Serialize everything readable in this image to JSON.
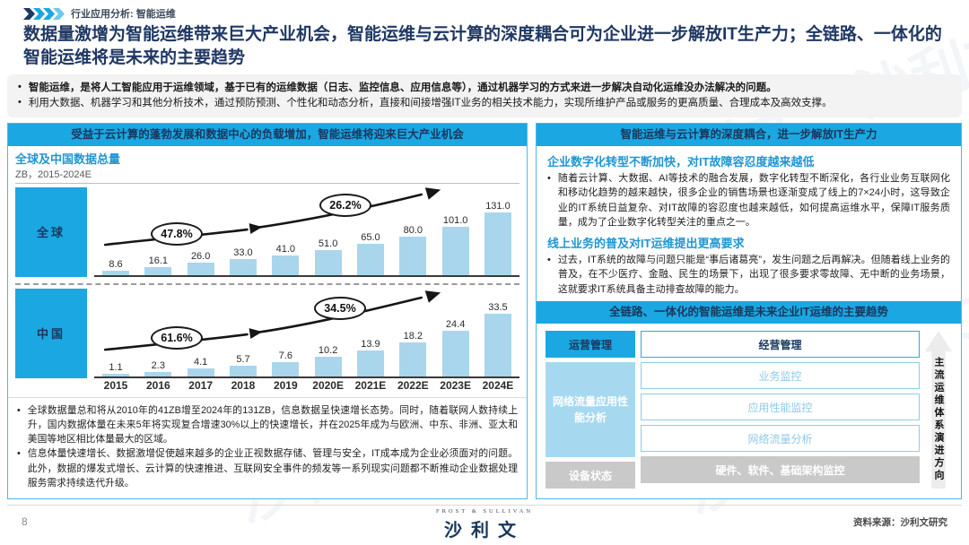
{
  "colors": {
    "accent_blue": "#1BA7E1",
    "bar_blue": "#A9D6EC",
    "navy": "#1F3864",
    "heading_blue": "#1E96D2",
    "gray_box": "#C9C9C9"
  },
  "header": {
    "eyebrow": "行业应用分析: 智能运维",
    "title": "数据量激增为智能运维带来巨大产业机会，智能运维与云计算的深度耦合可为企业进一步解放IT生产力；全链路、一体化的智能运维将是未来的主要趋势"
  },
  "intro": {
    "bullets": [
      "智能运维，是将人工智能应用于运维领域，基于已有的运维数据（日志、监控信息、应用信息等），通过机器学习的方式来进一步解决自动化运维没办法解决的问题。",
      "利用大数据、机器学习和其他分析技术，通过预防预测、个性化和动态分析，直接和间接增强IT业务的相关技术能力，实现所维护产品或服务的更高质量、合理成本及高效支撑。"
    ]
  },
  "left_panel": {
    "banner": "受益于云计算的蓬勃发展和数据中心的负载增加，智能运维将迎来巨大产业机会",
    "notes": [
      "全球数据量总和将从2010年的41ZB增至2024年的131ZB，信息数据呈快速增长态势。同时，随着联网人数持续上升，国内数据体量在未来5年将实现复合增速30%以上的快速增长，并在2025年成为与欧洲、中东、非洲、亚太和美国等地区相比体量最大的区域。",
      "信息体量快速增长、数据激增促使越来越多的企业正视数据存储、管理与安全，IT成本成为企业必须面对的问题。此外，数据的爆发式增长、云计算的快速推进、互联网安全事件的频发等一系列现实问题都不断推动企业数据处理服务需求持续迭代升级。"
    ]
  },
  "chart_data": [
    {
      "type": "bar",
      "name": "全球",
      "title": "全球及中国数据总量",
      "unit_label": "ZB，2015-2024E",
      "categories": [
        "2015",
        "2016",
        "2017",
        "2018",
        "2019",
        "2020E",
        "2021E",
        "2022E",
        "2023E",
        "2024E"
      ],
      "values": [
        8.6,
        16.1,
        26.0,
        33.0,
        41.0,
        51.0,
        65.0,
        80.0,
        101.0,
        131.0
      ],
      "labels": [
        "8.6",
        "16.1",
        "26.0",
        "33.0",
        "41.0",
        "51.0",
        "65.0",
        "80.0",
        "101.0",
        "131.0"
      ],
      "ylim": [
        0,
        131
      ],
      "ylabel": "ZB",
      "grid": false,
      "annotations": [
        "47.8%",
        "26.2%"
      ]
    },
    {
      "type": "bar",
      "name": "中国",
      "categories": [
        "2015",
        "2016",
        "2017",
        "2018",
        "2019",
        "2020E",
        "2021E",
        "2022E",
        "2023E",
        "2024E"
      ],
      "values": [
        1.1,
        2.3,
        4.1,
        5.7,
        7.6,
        10.2,
        13.9,
        18.2,
        24.4,
        33.5
      ],
      "labels": [
        "1.1",
        "2.3",
        "4.1",
        "5.7",
        "7.6",
        "10.2",
        "13.9",
        "18.2",
        "24.4",
        "33.5"
      ],
      "ylim": [
        0,
        33.5
      ],
      "ylabel": "ZB",
      "grid": false,
      "annotations": [
        "61.6%",
        "34.5%"
      ]
    }
  ],
  "right_panel": {
    "banner": "智能运维与云计算的深度耦合，进一步解放IT生产力",
    "sections": [
      {
        "heading": "企业数字化转型不断加快，对IT故障容忍度越来越低",
        "body": "随着云计算、大数据、AI等技术的融合发展，数字化转型不断深化，各行业业务互联网化和移动化趋势的越来越快，很多企业的销售场景也逐渐变成了线上的7×24小时，这导致企业的IT系统日益复杂、对IT故障的容忍度也越来越低，如何提高运维水平，保障IT服务质量，成为了企业数字化转型关注的重点之一。"
      },
      {
        "heading": "线上业务的普及对IT运维提出更高要求",
        "body": "过去，IT系统的故障与问题只能是“事后诸葛亮”，发生问题之后再解决。但随着线上业务的普及，在不少医疗、金融、民生的场景下，出现了很多要求零故障、无中断的业务场景，这就要求IT系统具备主动排查故障的能力。"
      }
    ],
    "banner2": "全链路、一体化的智能运维是未来企业IT运维的主要趋势",
    "diagram": {
      "left": [
        "运营管理",
        "网络流量应用性能分析",
        "设备状态"
      ],
      "rows": [
        "经营管理",
        "业务监控",
        "应用性能监控",
        "网络流量分析",
        "硬件、软件、基础架构监控"
      ],
      "arrow_label": "主流运维体系演进方向"
    }
  },
  "footer": {
    "page_number": "8",
    "source": "资料来源：沙利文研究",
    "logo_top": "FROST & SULLIVAN",
    "logo_cn": "沙利文"
  },
  "watermark": "沙利文"
}
